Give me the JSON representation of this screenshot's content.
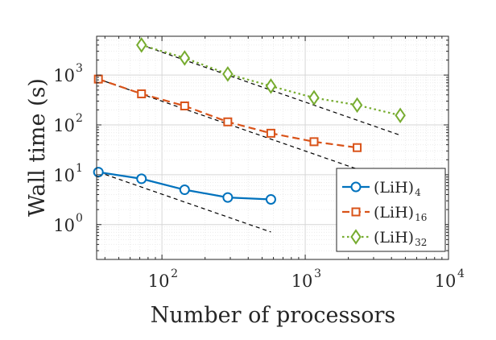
{
  "chart_data": {
    "type": "line",
    "title": "",
    "xlabel": "Number of processors",
    "ylabel": "Wall time (s)",
    "xscale": "log",
    "yscale": "log",
    "xlim": [
      35,
      10000
    ],
    "ylim": [
      0.2,
      6000
    ],
    "grid": true,
    "legend_position": "bottom-right",
    "xticks": [
      {
        "value": 100,
        "base": "10",
        "exp": "2"
      },
      {
        "value": 1000,
        "base": "10",
        "exp": "3"
      },
      {
        "value": 10000,
        "base": "10",
        "exp": "4"
      }
    ],
    "yticks": [
      {
        "value": 1,
        "base": "10",
        "exp": "0"
      },
      {
        "value": 10,
        "base": "10",
        "exp": "1"
      },
      {
        "value": 100,
        "base": "10",
        "exp": "2"
      },
      {
        "value": 1000,
        "base": "10",
        "exp": "3"
      }
    ],
    "series": [
      {
        "name": "(LiH)",
        "sub": "4",
        "color": "#0072BD",
        "marker": "circle",
        "linestyle": "solid",
        "x": [
          36,
          72,
          144,
          288,
          576
        ],
        "y": [
          11.3,
          8.3,
          5.0,
          3.5,
          3.2
        ]
      },
      {
        "name": "(LiH)",
        "sub": "16",
        "color": "#D95319",
        "marker": "square",
        "linestyle": "dashed",
        "x": [
          36,
          72,
          144,
          288,
          576,
          1152,
          2304
        ],
        "y": [
          830,
          420,
          240,
          115,
          68,
          46,
          35
        ]
      },
      {
        "name": "(LiH)",
        "sub": "32",
        "color": "#77AC30",
        "marker": "diamond",
        "linestyle": "dotted",
        "x": [
          72,
          144,
          288,
          576,
          1152,
          2304,
          4608
        ],
        "y": [
          4000,
          2200,
          1050,
          600,
          350,
          250,
          155
        ]
      }
    ],
    "reference_lines": [
      {
        "style": "dashed",
        "color": "#000000",
        "x": [
          36,
          576
        ],
        "y": [
          11.3,
          0.71
        ]
      },
      {
        "style": "dashed",
        "color": "#000000",
        "x": [
          36,
          2304
        ],
        "y": [
          830,
          13
        ]
      },
      {
        "style": "dashed",
        "color": "#000000",
        "x": [
          72,
          4608
        ],
        "y": [
          4000,
          62
        ]
      }
    ]
  }
}
